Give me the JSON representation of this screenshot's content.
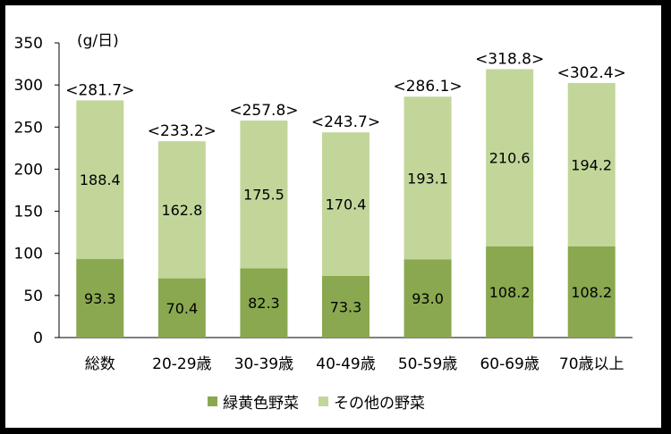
{
  "chart_data": {
    "type": "bar",
    "stacked": true,
    "unit_label": "(g/日)",
    "categories": [
      "総数",
      "20-29歳",
      "30-39歳",
      "40-49歳",
      "50-59歳",
      "60-69歳",
      "70歳以上"
    ],
    "series": [
      {
        "name": "緑黄色野菜",
        "color": "#8aa84f",
        "values": [
          93.3,
          70.4,
          82.3,
          73.3,
          93.0,
          108.2,
          108.2
        ],
        "labels": [
          "93.3",
          "70.4",
          "82.3",
          "73.3",
          "93.0",
          "108.2",
          "108.2"
        ]
      },
      {
        "name": "その他の野菜",
        "color": "#c2d69a",
        "values": [
          188.4,
          162.8,
          175.5,
          170.4,
          193.1,
          210.6,
          194.2
        ],
        "labels": [
          "188.4",
          "162.8",
          "175.5",
          "170.4",
          "193.1",
          "210.6",
          "194.2"
        ]
      }
    ],
    "totals": [
      "<281.7>",
      "<233.2>",
      "<257.8>",
      "<243.7>",
      "<286.1>",
      "<318.8>",
      "<302.4>"
    ],
    "ylim": [
      0,
      350
    ],
    "yticks": [
      0,
      50,
      100,
      150,
      200,
      250,
      300,
      350
    ],
    "grid": false,
    "legend_position": "bottom"
  }
}
